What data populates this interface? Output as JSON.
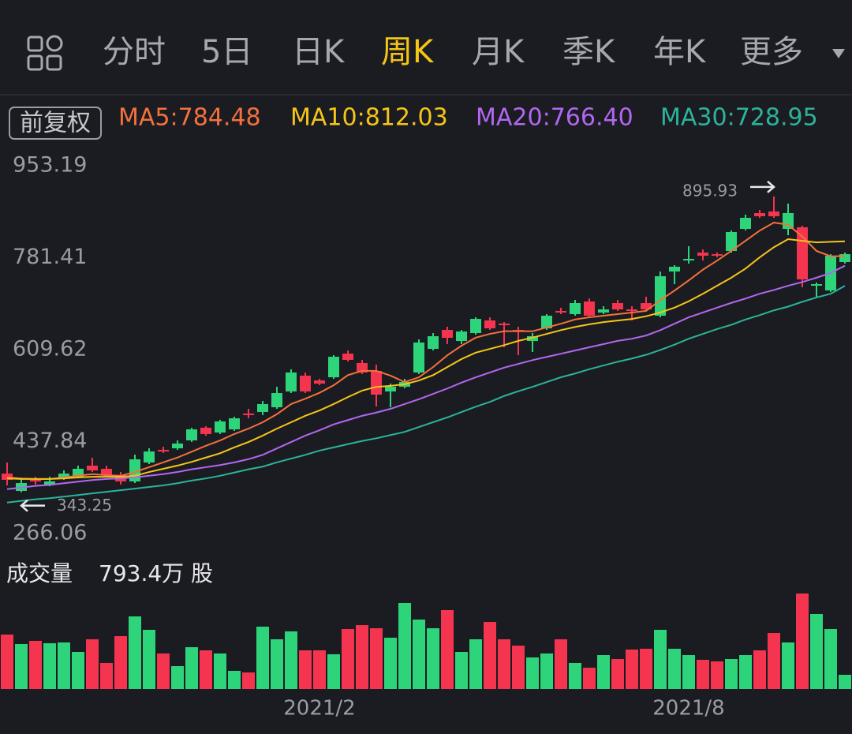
{
  "tabs": {
    "items": [
      "分时",
      "5日",
      "日K",
      "周K",
      "月K",
      "季K",
      "年K",
      "更多"
    ],
    "active": 3
  },
  "adjust_button": "前复权",
  "chart_data": [
    {
      "type": "candlestick",
      "up_color": "#2ed47a",
      "down_color": "#f5344f",
      "ylim": [
        266.06,
        953.19
      ],
      "yticks": [
        953.19,
        781.41,
        609.62,
        437.84,
        266.06
      ],
      "grid": false,
      "open": [
        378.1,
        345.7,
        366.3,
        357.5,
        369.3,
        372.2,
        392.9,
        387.0,
        375.2,
        363.4,
        398.8,
        422.4,
        425.3,
        440.1,
        463.7,
        454.8,
        460.7,
        490.2,
        493.1,
        502.0,
        531.5,
        561.0,
        552.1,
        558.0,
        602.2,
        584.6,
        569.8,
        531.5,
        540.3,
        566.9,
        611.1,
        646.5,
        625.8,
        640.6,
        664.2,
        658.3,
        646.5,
        625.8,
        649.4,
        681.9,
        676.0,
        699.6,
        678.9,
        696.6,
        684.8,
        696.6,
        673.0,
        755.6,
        776.3,
        791.0,
        788.0,
        793.9,
        835.2,
        864.7,
        867.7,
        835.2,
        838.2,
        729.1,
        720.2,
        773.3
      ],
      "high": [
        398.8,
        369.3,
        372.2,
        372.2,
        384.0,
        392.9,
        407.6,
        392.9,
        381.1,
        413.5,
        425.3,
        428.3,
        440.1,
        463.7,
        466.6,
        478.5,
        484.3,
        499.1,
        513.8,
        540.3,
        572.8,
        566.9,
        555.1,
        599.3,
        608.1,
        590.5,
        581.6,
        546.2,
        555.1,
        628.8,
        640.6,
        652.4,
        646.5,
        670.1,
        670.1,
        661.2,
        652.4,
        640.6,
        676.0,
        687.8,
        702.5,
        705.5,
        690.7,
        702.5,
        690.7,
        708.4,
        755.6,
        767.4,
        802.8,
        796.9,
        791.0,
        832.3,
        861.8,
        870.6,
        895.93,
        882.4,
        841.1,
        735.0,
        788.0,
        791.0
      ],
      "low": [
        356.0,
        343.25,
        357.5,
        354.5,
        366.3,
        369.3,
        381.1,
        372.2,
        357.5,
        360.4,
        395.8,
        416.4,
        422.4,
        437.1,
        448.9,
        451.9,
        457.8,
        481.4,
        487.3,
        499.1,
        528.5,
        528.5,
        543.3,
        555.1,
        587.5,
        563.9,
        503.5,
        502.0,
        537.4,
        563.9,
        608.1,
        620.0,
        620.0,
        637.6,
        646.5,
        614.0,
        599.3,
        605.2,
        646.5,
        676.0,
        673.0,
        670.1,
        676.0,
        681.9,
        664.2,
        681.9,
        670.1,
        732.0,
        770.4,
        776.3,
        782.1,
        791.0,
        832.3,
        855.9,
        855.9,
        823.4,
        726.1,
        708.4,
        717.3,
        770.4
      ],
      "close": [
        366.3,
        360.4,
        363.4,
        363.4,
        378.1,
        387.0,
        384.0,
        375.2,
        363.4,
        404.7,
        419.4,
        419.4,
        434.2,
        460.7,
        451.9,
        475.5,
        481.4,
        487.3,
        507.9,
        528.5,
        566.9,
        531.5,
        546.2,
        596.3,
        590.5,
        566.9,
        525.6,
        540.3,
        549.2,
        622.9,
        634.7,
        631.7,
        643.5,
        667.1,
        649.4,
        655.3,
        643.5,
        634.7,
        673.0,
        678.9,
        696.6,
        673.0,
        684.8,
        684.8,
        681.9,
        684.8,
        746.8,
        764.5,
        779.2,
        785.1,
        785.1,
        829.3,
        855.9,
        858.8,
        858.8,
        864.7,
        740.9,
        732.0,
        785.1,
        788.0
      ],
      "series": [
        {
          "name": "MA5:784.48",
          "color": "#f4713c",
          "values": [
            371,
            369,
            368,
            368,
            371,
            374,
            377,
            375,
            374,
            381,
            390,
            399,
            408,
            419,
            430,
            440,
            452,
            462,
            474,
            489,
            508,
            518,
            529,
            543,
            562,
            570,
            570,
            561,
            549,
            558,
            577,
            599,
            617,
            632,
            639,
            644,
            644,
            644,
            651,
            658,
            666,
            670,
            673,
            676,
            679,
            682,
            702,
            720,
            739,
            759,
            776,
            794,
            813,
            832,
            847,
            843,
            821,
            794,
            784,
            784.48
          ]
        },
        {
          "name": "MA10:812.03",
          "color": "#f5c518",
          "values": [
            369,
            368,
            368,
            368,
            369,
            371,
            372,
            372,
            372,
            374,
            381,
            387,
            393,
            400,
            408,
            416,
            427,
            437,
            449,
            462,
            474,
            486,
            496,
            508,
            521,
            533,
            540,
            542,
            545,
            552,
            562,
            577,
            592,
            604,
            611,
            618,
            626,
            632,
            639,
            646,
            652,
            657,
            661,
            664,
            667,
            672,
            679,
            688,
            700,
            714,
            729,
            744,
            761,
            782,
            801,
            816,
            813,
            810,
            811,
            812.03
          ]
        },
        {
          "name": "MA20:766.40",
          "color": "#b267f0",
          "values": [
            349,
            352,
            355,
            357,
            360,
            363,
            366,
            368,
            369,
            371,
            374,
            377,
            381,
            386,
            390,
            394,
            399,
            405,
            413,
            425,
            437,
            449,
            459,
            470,
            478,
            486,
            492,
            499,
            508,
            517,
            527,
            537,
            548,
            558,
            567,
            576,
            583,
            590,
            596,
            602,
            608,
            614,
            620,
            626,
            630,
            636,
            646,
            658,
            670,
            679,
            688,
            697,
            705,
            714,
            721,
            729,
            736,
            744,
            753,
            766.4
          ]
        },
        {
          "name": "MA30:728.95",
          "color": "#2bb39b",
          "values": [
            324,
            327,
            330,
            332,
            335,
            338,
            341,
            344,
            347,
            350,
            353,
            356,
            360,
            365,
            369,
            374,
            380,
            386,
            391,
            399,
            406,
            413,
            421,
            427,
            433,
            439,
            444,
            450,
            456,
            465,
            474,
            483,
            493,
            503,
            512,
            523,
            532,
            540,
            549,
            558,
            565,
            573,
            580,
            587,
            593,
            600,
            609,
            619,
            630,
            639,
            648,
            656,
            666,
            674,
            683,
            690,
            699,
            707,
            714,
            728.95
          ]
        }
      ]
    },
    {
      "type": "bar",
      "title": "成交量",
      "current_label": "793.4万 股",
      "categories": [
        null,
        null,
        null,
        null,
        null,
        null,
        null,
        null,
        null,
        null,
        null,
        null,
        null,
        null,
        null,
        null,
        null,
        null,
        null,
        null,
        null,
        null,
        "2021/2",
        null,
        null,
        null,
        null,
        null,
        null,
        null,
        null,
        null,
        null,
        null,
        null,
        null,
        null,
        null,
        null,
        null,
        null,
        null,
        null,
        null,
        null,
        null,
        null,
        null,
        "2021/8",
        null,
        null,
        null,
        null,
        null,
        null,
        null,
        null,
        null,
        null,
        null
      ],
      "values": [
        3042,
        2513,
        2689,
        2557,
        2601,
        2072,
        2777,
        1455,
        2953,
        4055,
        3306,
        1984,
        1278,
        2336,
        2160,
        1984,
        1014,
        926,
        3482,
        2777,
        3218,
        2160,
        2160,
        1940,
        3350,
        3570,
        3394,
        2865,
        4805,
        3879,
        3394,
        4408,
        2072,
        2777,
        3747,
        2777,
        2424,
        1763,
        1984,
        2777,
        1455,
        1190,
        1895,
        1675,
        2204,
        2248,
        3306,
        2248,
        1895,
        1631,
        1543,
        1675,
        1895,
        2160,
        3130,
        2601,
        5334,
        4188,
        3350,
        793.4
      ]
    }
  ]
}
